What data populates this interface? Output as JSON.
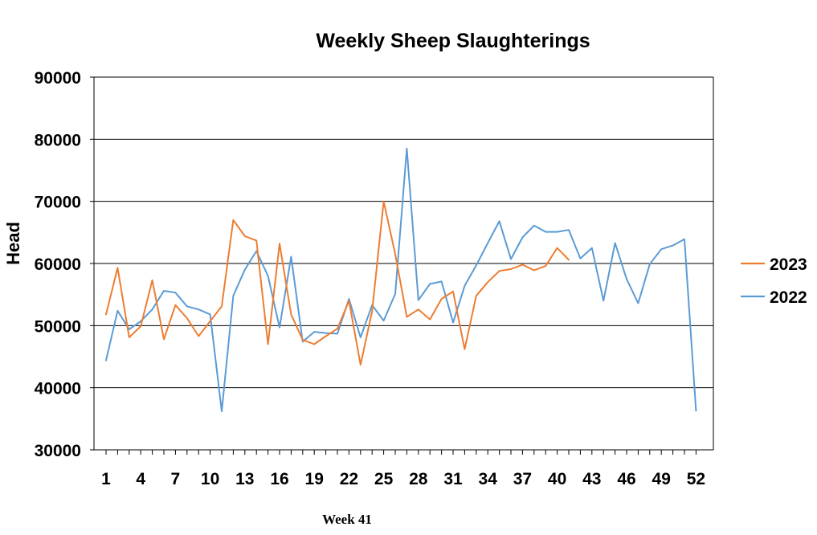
{
  "chart_data": {
    "type": "line",
    "title": "Weekly Sheep Slaughterings",
    "xlabel": "",
    "ylabel": "Head",
    "ylim": [
      30000,
      90000
    ],
    "yticks": [
      30000,
      40000,
      50000,
      60000,
      70000,
      80000,
      90000
    ],
    "ytick_labels": [
      "30000",
      "40000",
      "50000",
      "60000",
      "70000",
      "80000",
      "90000"
    ],
    "xlim": [
      1,
      52
    ],
    "xticks": [
      1,
      4,
      7,
      10,
      13,
      16,
      19,
      22,
      25,
      28,
      31,
      34,
      37,
      40,
      43,
      46,
      49,
      52
    ],
    "xtick_labels": [
      "1",
      "4",
      "7",
      "10",
      "13",
      "16",
      "19",
      "22",
      "25",
      "28",
      "31",
      "34",
      "37",
      "40",
      "43",
      "46",
      "49",
      "52"
    ],
    "grid": "horizontal",
    "legend_position": "right",
    "series": [
      {
        "name": "2023",
        "color": "#ED7D31",
        "x": [
          1,
          2,
          3,
          4,
          5,
          6,
          7,
          8,
          9,
          10,
          11,
          12,
          13,
          14,
          15,
          16,
          17,
          18,
          19,
          20,
          21,
          22,
          23,
          24,
          25,
          26,
          27,
          28,
          29,
          30,
          31,
          32,
          33,
          34,
          35,
          36,
          37,
          38,
          39,
          40,
          41
        ],
        "values": [
          51800,
          59300,
          48100,
          49900,
          57300,
          47800,
          53300,
          51200,
          48300,
          50700,
          53100,
          67000,
          64400,
          63700,
          47000,
          63200,
          51800,
          47700,
          47000,
          48300,
          49500,
          54000,
          43700,
          52300,
          70000,
          61500,
          51400,
          52600,
          51000,
          54300,
          55500,
          46200,
          54800,
          57000,
          58800,
          59100,
          59800,
          58900,
          59600,
          62500,
          60600
        ]
      },
      {
        "name": "2022",
        "color": "#5B9BD5",
        "x": [
          1,
          2,
          3,
          4,
          5,
          6,
          7,
          8,
          9,
          10,
          11,
          12,
          13,
          14,
          15,
          16,
          17,
          18,
          19,
          20,
          21,
          22,
          23,
          24,
          25,
          26,
          27,
          28,
          29,
          30,
          31,
          32,
          33,
          34,
          35,
          36,
          37,
          38,
          39,
          40,
          41,
          42,
          43,
          44,
          45,
          46,
          47,
          48,
          49,
          50,
          51,
          52
        ],
        "values": [
          44400,
          52400,
          49400,
          50700,
          52600,
          55600,
          55300,
          53100,
          52600,
          51800,
          36200,
          54800,
          59000,
          62000,
          58000,
          49700,
          61100,
          47400,
          49000,
          48800,
          48700,
          54300,
          48100,
          53300,
          50800,
          55100,
          78500,
          54100,
          56700,
          57100,
          50500,
          56400,
          59700,
          63300,
          66800,
          60700,
          64200,
          66100,
          65100,
          65100,
          65400,
          60800,
          62500,
          54000,
          63300,
          57500,
          53600,
          59900,
          62300,
          62900,
          63900,
          36300
        ]
      }
    ],
    "annotation": "Week 41"
  }
}
